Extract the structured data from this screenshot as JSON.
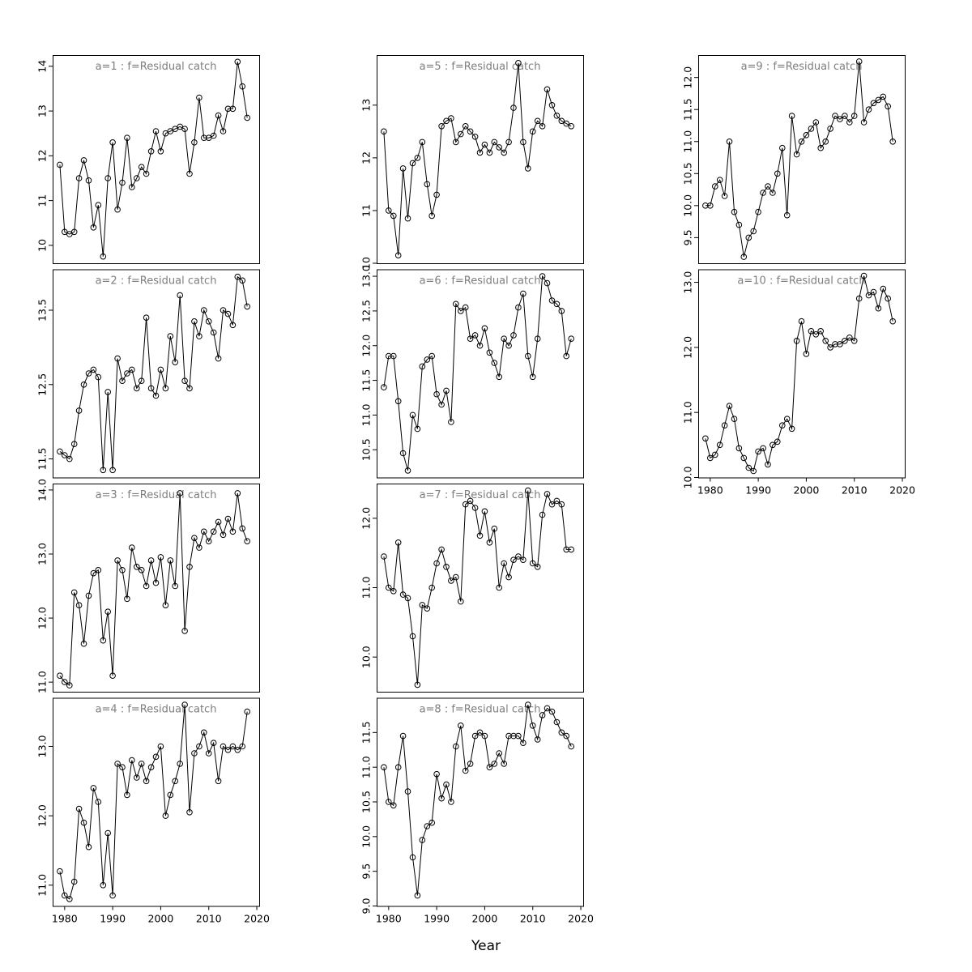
{
  "figure": {
    "xlabel": "Year",
    "background": "#ffffff",
    "title_color": "#7e7e7e",
    "line_color": "#000000",
    "point_style": "open-circle",
    "grid": "off",
    "layout": "3 columns, column-major: col1 = a1-a4, col2 = a5-a8, col3 = a9-a10"
  },
  "x_axis": {
    "xlim": [
      1977.5,
      2020.5
    ],
    "ticks": [
      1980,
      1990,
      2000,
      2010,
      2020
    ],
    "tick_labels": [
      "1980",
      "1990",
      "2000",
      "2010",
      "2020"
    ]
  },
  "years": [
    1979,
    1980,
    1981,
    1982,
    1983,
    1984,
    1985,
    1986,
    1987,
    1988,
    1989,
    1990,
    1991,
    1992,
    1993,
    1994,
    1995,
    1996,
    1997,
    1998,
    1999,
    2000,
    2001,
    2002,
    2003,
    2004,
    2005,
    2006,
    2007,
    2008,
    2009,
    2010,
    2011,
    2012,
    2013,
    2014,
    2015,
    2016,
    2017,
    2018
  ],
  "chart_data": [
    {
      "type": "line+scatter",
      "id": "a1",
      "title": "a=1  :  f=Residual catch",
      "col": 0,
      "row": 0,
      "show_x_axis": false,
      "ylim": [
        9.6,
        14.25
      ],
      "yticks": [
        10,
        11,
        12,
        13,
        14
      ],
      "ytick_labels": [
        "10",
        "11",
        "12",
        "13",
        "14"
      ],
      "values": [
        11.8,
        10.3,
        10.25,
        10.3,
        11.5,
        11.9,
        11.45,
        10.4,
        10.9,
        9.75,
        11.5,
        12.3,
        10.8,
        11.4,
        12.4,
        11.3,
        11.5,
        11.75,
        11.6,
        12.1,
        12.55,
        12.1,
        12.5,
        12.55,
        12.6,
        12.65,
        12.6,
        11.6,
        12.3,
        13.3,
        12.4,
        12.4,
        12.45,
        12.9,
        12.55,
        13.05,
        13.05,
        14.1,
        13.55,
        12.85
      ]
    },
    {
      "type": "line+scatter",
      "id": "a2",
      "title": "a=2  :  f=Residual catch",
      "col": 0,
      "row": 1,
      "show_x_axis": false,
      "ylim": [
        11.25,
        14.05
      ],
      "yticks": [
        11.5,
        12.5,
        13.5
      ],
      "ytick_labels": [
        "11.5",
        "12.5",
        "13.5"
      ],
      "values": [
        11.6,
        11.55,
        11.5,
        11.7,
        12.15,
        12.5,
        12.65,
        12.7,
        12.6,
        11.35,
        12.4,
        11.35,
        12.85,
        12.55,
        12.65,
        12.7,
        12.45,
        12.55,
        13.4,
        12.45,
        12.35,
        12.7,
        12.45,
        13.15,
        12.8,
        13.7,
        12.55,
        12.45,
        13.35,
        13.15,
        13.5,
        13.35,
        13.2,
        12.85,
        13.5,
        13.45,
        13.3,
        13.95,
        13.9,
        13.55
      ]
    },
    {
      "type": "line+scatter",
      "id": "a3",
      "title": "a=3  :  f=Residual catch",
      "col": 0,
      "row": 2,
      "show_x_axis": false,
      "ylim": [
        10.85,
        14.1
      ],
      "yticks": [
        11,
        12,
        13,
        14
      ],
      "ytick_labels": [
        "11.0",
        "12.0",
        "13.0",
        "14.0"
      ],
      "values": [
        11.1,
        11.0,
        10.95,
        12.4,
        12.2,
        11.6,
        12.35,
        12.7,
        12.75,
        11.65,
        12.1,
        11.1,
        12.9,
        12.75,
        12.3,
        13.1,
        12.8,
        12.75,
        12.5,
        12.9,
        12.55,
        12.95,
        12.2,
        12.9,
        12.5,
        13.95,
        11.8,
        12.8,
        13.25,
        13.1,
        13.35,
        13.2,
        13.35,
        13.5,
        13.3,
        13.55,
        13.35,
        13.95,
        13.4,
        13.2
      ]
    },
    {
      "type": "line+scatter",
      "id": "a4",
      "title": "a=4  :  f=Residual catch",
      "col": 0,
      "row": 3,
      "show_x_axis": true,
      "ylim": [
        10.7,
        13.7
      ],
      "yticks": [
        11,
        12,
        13
      ],
      "ytick_labels": [
        "11.0",
        "12.0",
        "13.0"
      ],
      "values": [
        11.2,
        10.85,
        10.8,
        11.05,
        12.1,
        11.9,
        11.55,
        12.4,
        12.2,
        11.0,
        11.75,
        10.85,
        12.75,
        12.7,
        12.3,
        12.8,
        12.55,
        12.75,
        12.5,
        12.7,
        12.85,
        13.0,
        12.0,
        12.3,
        12.5,
        12.75,
        13.6,
        12.05,
        12.9,
        13.0,
        13.2,
        12.9,
        13.05,
        12.5,
        13.0,
        12.95,
        13.0,
        12.95,
        13.0,
        13.5
      ]
    },
    {
      "type": "line+scatter",
      "id": "a5",
      "title": "a=5  :  f=Residual catch",
      "col": 1,
      "row": 0,
      "show_x_axis": false,
      "ylim": [
        10.0,
        13.95
      ],
      "yticks": [
        10,
        11,
        12,
        13
      ],
      "ytick_labels": [
        "10",
        "11",
        "12",
        "13"
      ],
      "values": [
        12.5,
        11.0,
        10.9,
        10.15,
        11.8,
        10.85,
        11.9,
        12.0,
        12.3,
        11.5,
        10.9,
        11.3,
        12.6,
        12.7,
        12.75,
        12.3,
        12.45,
        12.6,
        12.5,
        12.4,
        12.1,
        12.25,
        12.1,
        12.3,
        12.2,
        12.1,
        12.3,
        12.95,
        13.8,
        12.3,
        11.8,
        12.5,
        12.7,
        12.6,
        13.3,
        13.0,
        12.8,
        12.7,
        12.65,
        12.6
      ]
    },
    {
      "type": "line+scatter",
      "id": "a6",
      "title": "a=6  :  f=Residual catch",
      "col": 1,
      "row": 1,
      "show_x_axis": false,
      "ylim": [
        10.1,
        13.1
      ],
      "yticks": [
        10.5,
        11.0,
        11.5,
        12.0,
        12.5,
        13.0
      ],
      "ytick_labels": [
        "10.5",
        "11.0",
        "11.5",
        "12.0",
        "12.5",
        "13.0"
      ],
      "values": [
        11.4,
        11.85,
        11.85,
        11.2,
        10.45,
        10.2,
        11.0,
        10.8,
        11.7,
        11.8,
        11.85,
        11.3,
        11.15,
        11.35,
        10.9,
        12.6,
        12.5,
        12.55,
        12.1,
        12.15,
        12.0,
        12.25,
        11.9,
        11.75,
        11.55,
        12.1,
        12.0,
        12.15,
        12.55,
        12.75,
        11.85,
        11.55,
        12.1,
        13.0,
        12.9,
        12.65,
        12.6,
        12.5,
        11.85,
        12.1
      ]
    },
    {
      "type": "line+scatter",
      "id": "a7",
      "title": "a=7  :  f=Residual catch",
      "col": 1,
      "row": 2,
      "show_x_axis": false,
      "ylim": [
        9.5,
        12.5
      ],
      "yticks": [
        10,
        11,
        12
      ],
      "ytick_labels": [
        "10.0",
        "11.0",
        "12.0"
      ],
      "values": [
        11.45,
        11.0,
        10.95,
        11.65,
        10.9,
        10.85,
        10.3,
        9.6,
        10.75,
        10.7,
        11.0,
        11.35,
        11.55,
        11.3,
        11.1,
        11.15,
        10.8,
        12.2,
        12.25,
        12.15,
        11.75,
        12.1,
        11.65,
        11.85,
        11.0,
        11.35,
        11.15,
        11.4,
        11.45,
        11.4,
        12.4,
        11.35,
        11.3,
        12.05,
        12.35,
        12.2,
        12.25,
        12.2,
        11.55,
        11.55
      ]
    },
    {
      "type": "line+scatter",
      "id": "a8",
      "title": "a=8  :  f=Residual catch",
      "col": 1,
      "row": 3,
      "show_x_axis": true,
      "ylim": [
        9.0,
        12.0
      ],
      "yticks": [
        9.0,
        9.5,
        10.0,
        10.5,
        11.0,
        11.5
      ],
      "ytick_labels": [
        "9.0",
        "9.5",
        "10.0",
        "10.5",
        "11.0",
        "11.5"
      ],
      "values": [
        11.0,
        10.5,
        10.45,
        11.0,
        11.45,
        10.65,
        9.7,
        9.15,
        9.95,
        10.15,
        10.2,
        10.9,
        10.55,
        10.75,
        10.5,
        11.3,
        11.6,
        10.95,
        11.05,
        11.45,
        11.5,
        11.45,
        11.0,
        11.05,
        11.2,
        11.05,
        11.45,
        11.45,
        11.45,
        11.35,
        11.9,
        11.6,
        11.4,
        11.75,
        11.85,
        11.8,
        11.65,
        11.5,
        11.45,
        11.3
      ]
    },
    {
      "type": "line+scatter",
      "id": "a9",
      "title": "a=9  :  f=Residual catch",
      "col": 2,
      "row": 0,
      "show_x_axis": false,
      "ylim": [
        9.1,
        12.35
      ],
      "yticks": [
        9.5,
        10.0,
        10.5,
        11.0,
        11.5,
        12.0
      ],
      "ytick_labels": [
        "9.5",
        "10.0",
        "10.5",
        "11.0",
        "11.5",
        "12.0"
      ],
      "values": [
        10.0,
        10.0,
        10.3,
        10.4,
        10.15,
        11.0,
        9.9,
        9.7,
        9.2,
        9.5,
        9.6,
        9.9,
        10.2,
        10.3,
        10.2,
        10.5,
        10.9,
        9.85,
        11.4,
        10.8,
        11.0,
        11.1,
        11.2,
        11.3,
        10.9,
        11.0,
        11.2,
        11.4,
        11.35,
        11.4,
        11.3,
        11.4,
        12.25,
        11.3,
        11.5,
        11.6,
        11.65,
        11.7,
        11.55,
        11.0
      ]
    },
    {
      "type": "line+scatter",
      "id": "a10",
      "title": "a=10  :  f=Residual catch",
      "col": 2,
      "row": 1,
      "show_x_axis": true,
      "ylim": [
        10.0,
        13.2
      ],
      "yticks": [
        10,
        11,
        12,
        13
      ],
      "ytick_labels": [
        "10.0",
        "11.0",
        "12.0",
        "13.0"
      ],
      "values": [
        10.6,
        10.3,
        10.35,
        10.5,
        10.8,
        11.1,
        10.9,
        10.45,
        10.3,
        10.15,
        10.1,
        10.4,
        10.45,
        10.2,
        10.5,
        10.55,
        10.8,
        10.9,
        10.75,
        12.1,
        12.4,
        11.9,
        12.25,
        12.2,
        12.25,
        12.1,
        12.0,
        12.05,
        12.05,
        12.1,
        12.15,
        12.1,
        12.75,
        13.1,
        12.8,
        12.85,
        12.6,
        12.9,
        12.75,
        12.4
      ]
    }
  ]
}
